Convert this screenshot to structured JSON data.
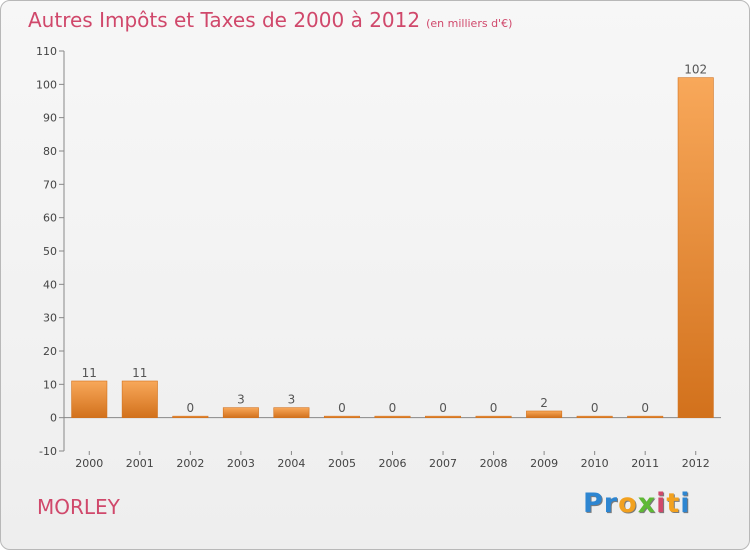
{
  "title": "Autres Impôts et Taxes de 2000 à 2012",
  "subtitle": "(en milliers d'€)",
  "commune": "MORLEY",
  "logo": {
    "letters": [
      "P",
      "r",
      "o",
      "x",
      "i",
      "t",
      "i"
    ],
    "colors": [
      "#2e86d1",
      "#2e86d1",
      "#f2a11f",
      "#5fb935",
      "#d0486b",
      "#f2a11f",
      "#2e86d1"
    ]
  },
  "colors": {
    "bar_light": "#f8a85a",
    "bar_dark": "#d2711c",
    "text": "#d0486b",
    "axis": "#888888"
  },
  "chart_data": {
    "type": "bar",
    "categories": [
      "2000",
      "2001",
      "2002",
      "2003",
      "2004",
      "2005",
      "2006",
      "2007",
      "2008",
      "2009",
      "2010",
      "2011",
      "2012"
    ],
    "values": [
      11,
      11,
      0,
      3,
      3,
      0,
      0,
      0,
      0,
      2,
      0,
      0,
      102
    ],
    "ylim": [
      -10,
      110
    ],
    "yticks": [
      -10,
      0,
      10,
      20,
      30,
      40,
      50,
      60,
      70,
      80,
      90,
      100,
      110
    ],
    "grid": false,
    "legend": "none"
  }
}
